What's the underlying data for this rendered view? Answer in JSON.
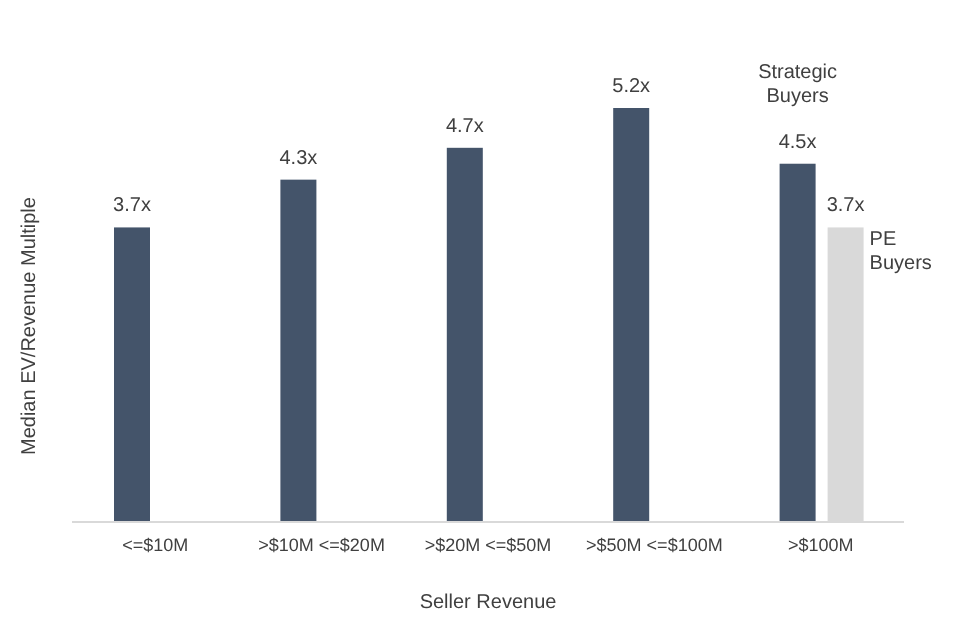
{
  "chart_data": {
    "type": "bar",
    "xlabel": "Seller Revenue",
    "ylabel": "Median EV/Revenue Multiple",
    "categories": [
      "<=$10M",
      ">$10M <=$20M",
      ">$20M <=$50M",
      ">$50M <=$100M",
      ">$100M"
    ],
    "series": [
      {
        "name": "Strategic Buyers",
        "color": "#44546a",
        "values": [
          3.7,
          4.3,
          4.7,
          5.2,
          4.5
        ],
        "value_labels": [
          "3.7x",
          "4.3x",
          "4.7x",
          "5.2x",
          "4.5x"
        ]
      },
      {
        "name": "PE Buyers",
        "color": "#d9d9d9",
        "values": [
          null,
          null,
          null,
          null,
          3.7
        ],
        "value_labels": [
          null,
          null,
          null,
          null,
          "3.7x"
        ]
      }
    ],
    "legend": false,
    "grid": false
  }
}
